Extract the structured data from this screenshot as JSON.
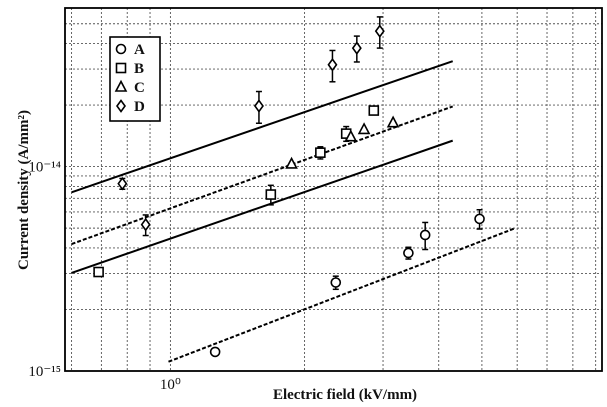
{
  "chart_data": {
    "type": "scatter",
    "title": "",
    "xlabel": "Electric field (kV/mm)",
    "ylabel": "Current density (A/mm²)",
    "x_scale": "log",
    "y_scale": "log",
    "xlim": [
      0.58,
      9.3
    ],
    "ylim": [
      1e-15,
      5.97e-14
    ],
    "x_tick_labels": [
      {
        "value": 1,
        "label": "10⁰"
      }
    ],
    "y_tick_labels": [
      {
        "value": 1e-15,
        "label": "10⁻¹⁵"
      },
      {
        "value": 1e-14,
        "label": "10⁻¹⁴"
      }
    ],
    "grid": true,
    "legend_position": "top-left",
    "series": [
      {
        "name": "A",
        "marker": "circle",
        "fit": "dashed",
        "x": [
          1.26,
          2.35,
          3.42,
          3.73,
          4.94
        ],
        "y": [
          1.24e-15,
          2.71e-15,
          3.78e-15,
          4.63e-15,
          5.55e-15
        ],
        "err": [
          5e-17,
          2e-16,
          2.5e-16,
          7e-16,
          6e-16
        ],
        "fit_x": [
          0.99,
          5.9
        ],
        "fit_y": [
          1.11e-15,
          4.97e-15
        ]
      },
      {
        "name": "B",
        "marker": "square",
        "fit": "solid",
        "x": [
          0.69,
          1.68,
          2.17,
          2.48,
          2.86
        ],
        "y": [
          3.05e-15,
          7.3e-15,
          1.17e-14,
          1.45e-14,
          1.88e-14
        ],
        "err": [
          0,
          8e-16,
          8e-16,
          1.2e-15,
          8e-16
        ],
        "fit_x": [
          0.6,
          4.3
        ],
        "fit_y": [
          3.02e-15,
          1.34e-14
        ]
      },
      {
        "name": "C",
        "marker": "triangle",
        "fit": "dashed",
        "x": [
          1.87,
          2.54,
          2.72,
          3.16
        ],
        "y": [
          1.03e-14,
          1.4e-14,
          1.52e-14,
          1.64e-14
        ],
        "err": [
          0,
          0,
          0,
          0
        ],
        "fit_x": [
          0.6,
          4.3
        ],
        "fit_y": [
          4.18e-15,
          1.97e-14
        ]
      },
      {
        "name": "D",
        "marker": "diamond",
        "fit": "solid",
        "x": [
          0.78,
          0.88,
          1.58,
          2.31,
          2.62,
          2.95
        ],
        "y": [
          8.25e-15,
          5.2e-15,
          1.98e-14,
          3.15e-14,
          3.8e-14,
          4.6e-14
        ],
        "err": [
          5e-16,
          6e-16,
          3.5e-15,
          5.5e-15,
          5.5e-15,
          8e-15
        ],
        "fit_x": [
          0.6,
          4.3
        ],
        "fit_y": [
          7.49e-15,
          3.28e-14
        ]
      }
    ]
  }
}
